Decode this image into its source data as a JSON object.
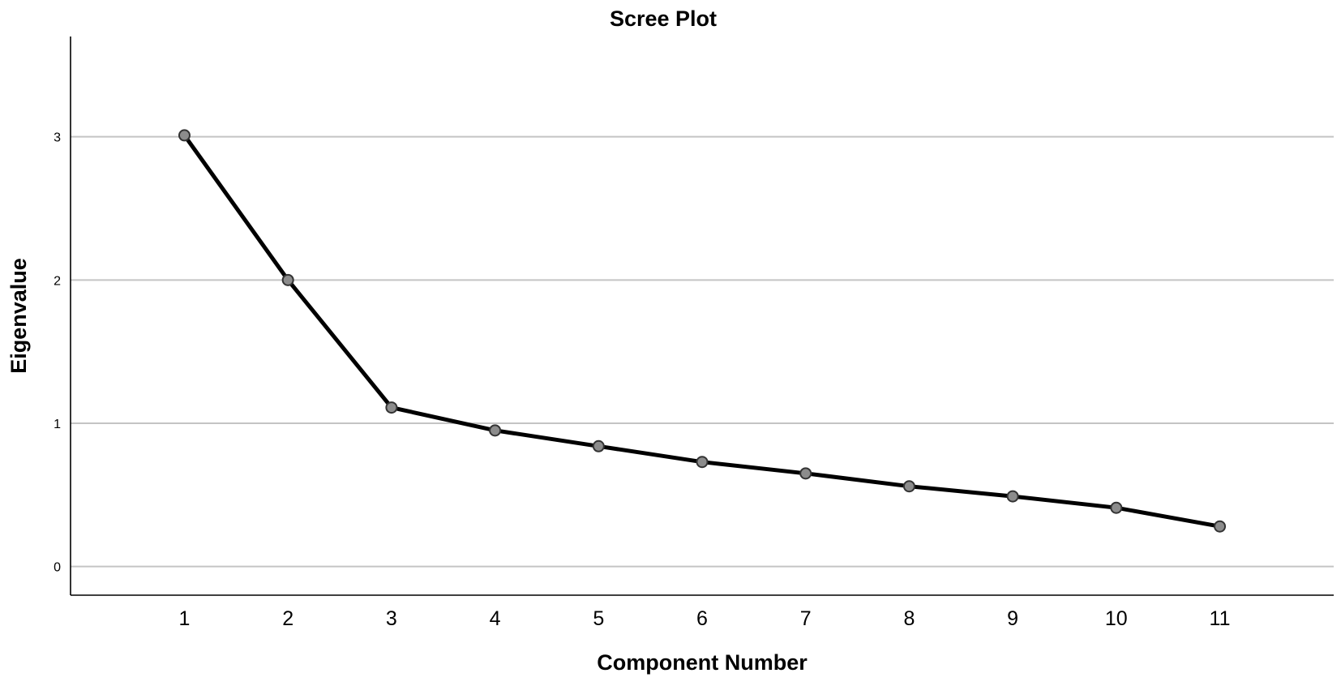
{
  "chart_data": {
    "type": "line",
    "title": "Scree Plot",
    "xlabel": "Component Number",
    "ylabel": "Eigenvalue",
    "x": [
      1,
      2,
      3,
      4,
      5,
      6,
      7,
      8,
      9,
      10,
      11
    ],
    "x_tick_labels": [
      "1",
      "2",
      "3",
      "4",
      "5",
      "6",
      "7",
      "8",
      "9",
      "10",
      "11"
    ],
    "y_ticks": [
      0,
      1,
      2,
      3
    ],
    "y_tick_labels": [
      "0",
      "1",
      "2",
      "3"
    ],
    "values": [
      3.01,
      2.0,
      1.11,
      0.95,
      0.84,
      0.73,
      0.65,
      0.56,
      0.49,
      0.41,
      0.28
    ],
    "xlim": [
      -0.1,
      12.1
    ],
    "ylim": [
      -0.2,
      3.7
    ],
    "grid": "horizontal",
    "line_color": "#000000",
    "marker_color": "#8c8c8c"
  }
}
